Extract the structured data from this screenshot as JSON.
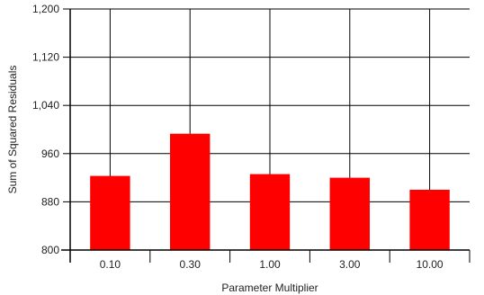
{
  "chart_data": {
    "type": "bar",
    "title": "",
    "xlabel": "Parameter Multiplier",
    "ylabel": "Sum of Squared Residuals",
    "categories": [
      "0.10",
      "0.30",
      "1.00",
      "3.00",
      "10.00"
    ],
    "series": [
      {
        "values": [
          923,
          993,
          926,
          920,
          900
        ],
        "color": "#ff0000"
      }
    ],
    "ylim": [
      800,
      1200
    ],
    "yticks": [
      800,
      880,
      960,
      1040,
      1120,
      1200
    ],
    "ytick_labels": [
      "800",
      "880",
      "960",
      "1,040",
      "1,120",
      "1,200"
    ],
    "grid": true,
    "legend": "none"
  }
}
